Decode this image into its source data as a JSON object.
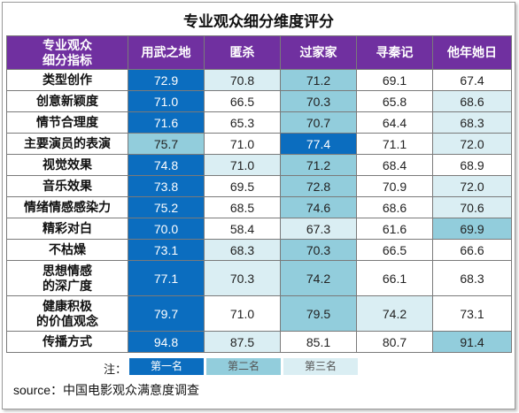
{
  "title": "专业观众细分维度评分",
  "header": {
    "corner": [
      "专业观众",
      "细分指标"
    ],
    "columns": [
      "用武之地",
      "匿杀",
      "过家家",
      "寻秦记",
      "他年她日"
    ]
  },
  "rows": [
    {
      "label": [
        "类型创作"
      ],
      "values": [
        "72.9",
        "70.8",
        "71.2",
        "69.1",
        "67.4"
      ],
      "ranks": [
        1,
        3,
        2,
        0,
        0
      ]
    },
    {
      "label": [
        "创意新颖度"
      ],
      "values": [
        "71.0",
        "66.5",
        "70.3",
        "65.8",
        "68.6"
      ],
      "ranks": [
        1,
        0,
        2,
        0,
        3
      ]
    },
    {
      "label": [
        "情节合理度"
      ],
      "values": [
        "71.6",
        "65.3",
        "70.7",
        "64.4",
        "68.3"
      ],
      "ranks": [
        1,
        0,
        2,
        0,
        3
      ]
    },
    {
      "label": [
        "主要演员的表演"
      ],
      "values": [
        "75.7",
        "71.0",
        "77.4",
        "71.1",
        "72.0"
      ],
      "ranks": [
        2,
        0,
        1,
        0,
        3
      ]
    },
    {
      "label": [
        "视觉效果"
      ],
      "values": [
        "74.8",
        "71.0",
        "71.2",
        "68.4",
        "68.9"
      ],
      "ranks": [
        1,
        3,
        2,
        0,
        0
      ]
    },
    {
      "label": [
        "音乐效果"
      ],
      "values": [
        "73.8",
        "69.5",
        "72.8",
        "70.9",
        "72.0"
      ],
      "ranks": [
        1,
        0,
        2,
        0,
        3
      ]
    },
    {
      "label": [
        "情绪情感感染力"
      ],
      "values": [
        "75.2",
        "68.5",
        "74.6",
        "68.6",
        "70.6"
      ],
      "ranks": [
        1,
        0,
        2,
        0,
        3
      ]
    },
    {
      "label": [
        "精彩对白"
      ],
      "values": [
        "70.0",
        "58.4",
        "67.3",
        "61.6",
        "69.9"
      ],
      "ranks": [
        1,
        0,
        3,
        0,
        2
      ]
    },
    {
      "label": [
        "不枯燥"
      ],
      "values": [
        "73.1",
        "68.3",
        "70.3",
        "66.5",
        "66.6"
      ],
      "ranks": [
        1,
        3,
        2,
        0,
        0
      ]
    },
    {
      "label": [
        "思想情感",
        "的深广度"
      ],
      "values": [
        "77.1",
        "70.3",
        "74.2",
        "66.1",
        "68.3"
      ],
      "ranks": [
        1,
        3,
        2,
        0,
        0
      ]
    },
    {
      "label": [
        "健康积极",
        "的价值观念"
      ],
      "values": [
        "79.7",
        "71.0",
        "79.5",
        "74.2",
        "73.1"
      ],
      "ranks": [
        1,
        0,
        2,
        3,
        0
      ]
    },
    {
      "label": [
        "传播方式"
      ],
      "values": [
        "94.8",
        "87.5",
        "85.1",
        "80.7",
        "91.4"
      ],
      "ranks": [
        1,
        3,
        0,
        0,
        2
      ]
    }
  ],
  "legend": {
    "note": "注：",
    "items": [
      {
        "label": "第一名",
        "color": "#0b6dbf",
        "text_color": "#ffffff"
      },
      {
        "label": "第二名",
        "color": "#92cddc",
        "text_color": "#555555"
      },
      {
        "label": "第三名",
        "color": "#daeef3",
        "text_color": "#555555"
      }
    ]
  },
  "source": "source：中国电影观众满意度调查",
  "colors": {
    "header": "#7030a0",
    "first": "#0b6dbf",
    "second": "#92cddc",
    "third": "#daeef3"
  },
  "chart_data": {
    "type": "table",
    "title": "专业观众细分维度评分",
    "columns": [
      "用武之地",
      "匿杀",
      "过家家",
      "寻秦记",
      "他年她日"
    ],
    "rows": [
      "类型创作",
      "创意新颖度",
      "情节合理度",
      "主要演员的表演",
      "视觉效果",
      "音乐效果",
      "情绪情感感染力",
      "精彩对白",
      "不枯燥",
      "思想情感的深广度",
      "健康积极的价值观念",
      "传播方式"
    ],
    "values": [
      [
        72.9,
        70.8,
        71.2,
        69.1,
        67.4
      ],
      [
        71.0,
        66.5,
        70.3,
        65.8,
        68.6
      ],
      [
        71.6,
        65.3,
        70.7,
        64.4,
        68.3
      ],
      [
        75.7,
        71.0,
        77.4,
        71.1,
        72.0
      ],
      [
        74.8,
        71.0,
        71.2,
        68.4,
        68.9
      ],
      [
        73.8,
        69.5,
        72.8,
        70.9,
        72.0
      ],
      [
        75.2,
        68.5,
        74.6,
        68.6,
        70.6
      ],
      [
        70.0,
        58.4,
        67.3,
        61.6,
        69.9
      ],
      [
        73.1,
        68.3,
        70.3,
        66.5,
        66.6
      ],
      [
        77.1,
        70.3,
        74.2,
        66.1,
        68.3
      ],
      [
        79.7,
        71.0,
        79.5,
        74.2,
        73.1
      ],
      [
        94.8,
        87.5,
        85.1,
        80.7,
        91.4
      ]
    ]
  }
}
